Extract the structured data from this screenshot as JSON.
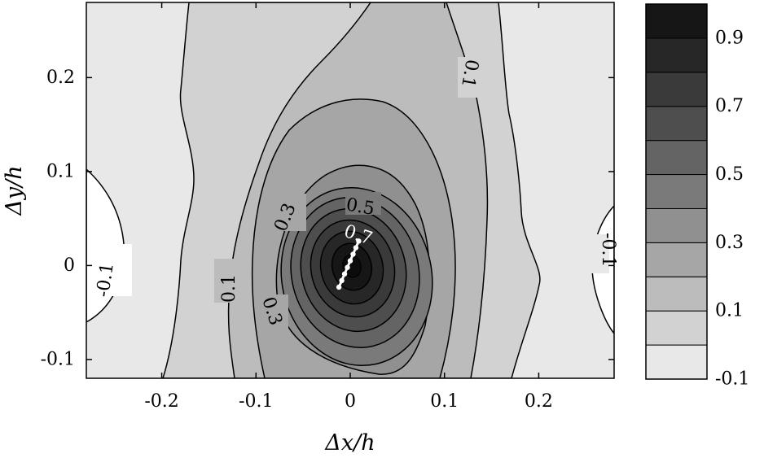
{
  "chart_data": {
    "type": "contour",
    "xlabel": "Δx/h",
    "ylabel": "Δy/h",
    "xlim": [
      -0.28,
      0.28
    ],
    "ylim": [
      -0.12,
      0.28
    ],
    "x_ticks": [
      "-0.2",
      "-0.1",
      "0",
      "0.1",
      "0.2"
    ],
    "x_tick_values": [
      -0.2,
      -0.1,
      0,
      0.1,
      0.2
    ],
    "y_ticks": [
      "-0.1",
      "0",
      "0.1",
      "0.2"
    ],
    "y_tick_values": [
      -0.1,
      0,
      0.1,
      0.2
    ],
    "colorbar": {
      "levels": [
        -0.1,
        0.0,
        0.1,
        0.2,
        0.3,
        0.4,
        0.5,
        0.6,
        0.7,
        0.8,
        0.9,
        1.0
      ],
      "tick_labels": [
        "0.9",
        "0.7",
        "0.5",
        "0.3",
        "0.1",
        "-0.1"
      ],
      "tick_values": [
        0.9,
        0.7,
        0.5,
        0.3,
        0.1,
        -0.1
      ],
      "colors": [
        "#e8e8e8",
        "#d2d2d2",
        "#bcbcbc",
        "#a6a6a6",
        "#909090",
        "#7a7a7a",
        "#646464",
        "#4e4e4e",
        "#3a3a3a",
        "#272727",
        "#161616"
      ]
    },
    "contour_labels": [
      "0.1",
      "0.1",
      "0.3",
      "0.3",
      "0.5",
      "0.7",
      "-0.1",
      "-0.1"
    ],
    "trajectory": {
      "x": [
        -0.012,
        -0.009,
        -0.006,
        -0.003,
        0.0,
        0.003,
        0.006,
        0.009
      ],
      "y": [
        -0.023,
        -0.016,
        -0.009,
        -0.002,
        0.005,
        0.012,
        0.019,
        0.026
      ]
    }
  }
}
